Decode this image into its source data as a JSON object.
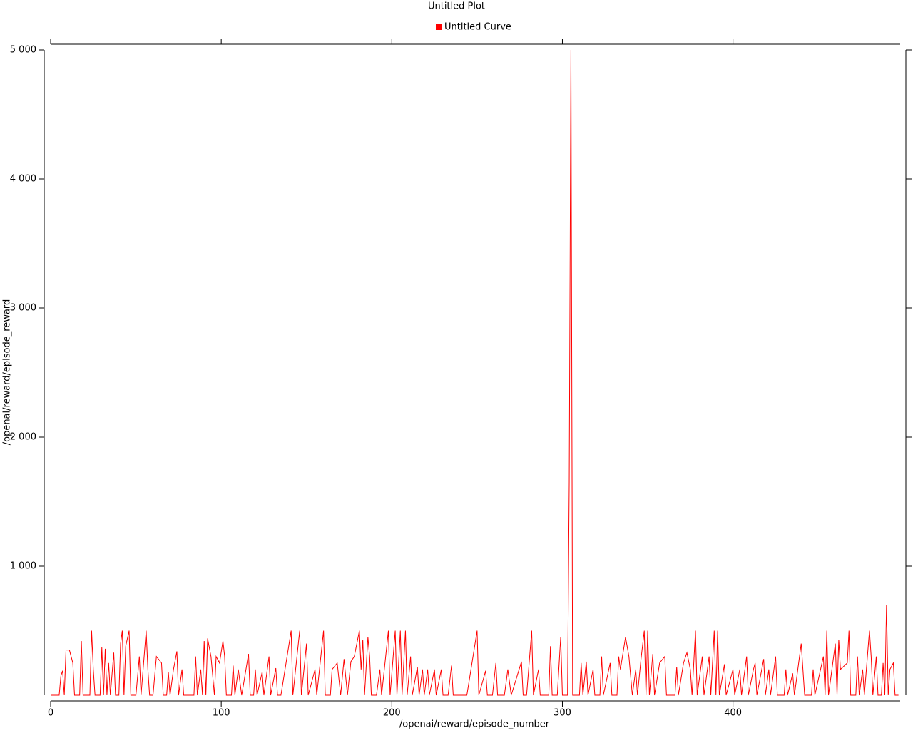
{
  "chart_data": {
    "type": "line",
    "title": "Untitled Plot",
    "x_label": "/openai/reward/episode_number",
    "y_label": "/openai/reward/episode_reward",
    "xlim": [
      0,
      498
    ],
    "ylim": [
      0,
      5000
    ],
    "xticks": [
      0,
      100,
      200,
      300,
      400
    ],
    "yticks": [
      {
        "value": 1000,
        "label": "1 000"
      },
      {
        "value": 2000,
        "label": "2 000"
      },
      {
        "value": 3000,
        "label": "3 000"
      },
      {
        "value": 4000,
        "label": "4 000"
      },
      {
        "value": 5000,
        "label": "5 000"
      }
    ],
    "legend": "top",
    "series": [
      {
        "name": "Untitled Curve",
        "color": "#ff0000",
        "x": [
          0,
          5,
          6,
          7,
          8,
          9,
          11,
          13,
          14,
          17,
          18,
          19,
          23,
          24,
          25,
          26,
          29,
          30,
          31,
          32,
          33,
          34,
          35,
          37,
          38,
          40,
          41,
          42,
          43,
          44,
          46,
          47,
          50,
          52,
          53,
          56,
          57,
          58,
          60,
          62,
          65,
          66,
          68,
          69,
          70,
          72,
          74,
          75,
          77,
          78,
          84,
          85,
          86,
          88,
          89,
          90,
          91,
          92,
          94,
          96,
          97,
          99,
          101,
          102,
          103,
          106,
          107,
          108,
          110,
          112,
          116,
          117,
          119,
          120,
          121,
          124,
          125,
          128,
          129,
          132,
          133,
          135,
          141,
          142,
          146,
          147,
          150,
          151,
          155,
          156,
          160,
          161,
          164,
          165,
          168,
          170,
          172,
          174,
          176,
          178,
          181,
          182,
          183,
          184,
          186,
          187,
          188,
          191,
          193,
          194,
          198,
          199,
          202,
          203,
          205,
          206,
          208,
          209,
          211,
          212,
          215,
          216,
          218,
          219,
          221,
          222,
          225,
          226,
          229,
          230,
          233,
          235,
          236,
          244,
          250,
          251,
          255,
          256,
          259,
          261,
          262,
          266,
          268,
          270,
          276,
          277,
          279,
          282,
          283,
          286,
          287,
          292,
          293,
          294,
          297,
          299,
          300,
          303,
          304,
          305,
          306,
          310,
          311,
          312,
          314,
          315,
          318,
          319,
          322,
          323,
          324,
          328,
          329,
          332,
          333,
          334,
          337,
          339,
          341,
          343,
          344,
          346,
          348,
          349,
          350,
          351,
          353,
          354,
          357,
          360,
          361,
          366,
          367,
          368,
          371,
          373,
          375,
          376,
          378,
          379,
          382,
          383,
          386,
          387,
          389,
          390,
          391,
          392,
          395,
          396,
          400,
          401,
          404,
          405,
          408,
          409,
          412,
          413,
          414,
          418,
          419,
          421,
          422,
          425,
          426,
          430,
          431,
          432,
          435,
          436,
          440,
          441,
          442,
          446,
          447,
          448,
          453,
          454,
          455,
          456,
          460,
          461,
          462,
          463,
          467,
          468,
          469,
          472,
          473,
          474,
          476,
          477,
          480,
          481,
          482,
          484,
          485,
          487,
          488,
          489,
          490,
          491,
          492,
          494,
          495,
          497
        ],
        "values": [
          0,
          0,
          150,
          190,
          0,
          350,
          350,
          250,
          0,
          0,
          420,
          0,
          0,
          500,
          200,
          0,
          0,
          370,
          0,
          360,
          0,
          250,
          0,
          330,
          0,
          0,
          400,
          500,
          0,
          380,
          500,
          0,
          0,
          300,
          0,
          500,
          200,
          0,
          0,
          300,
          250,
          0,
          0,
          180,
          0,
          200,
          340,
          0,
          200,
          0,
          0,
          300,
          0,
          200,
          0,
          420,
          0,
          440,
          300,
          0,
          300,
          250,
          420,
          300,
          0,
          0,
          230,
          0,
          200,
          0,
          320,
          0,
          0,
          200,
          0,
          180,
          0,
          300,
          0,
          210,
          0,
          0,
          500,
          0,
          500,
          0,
          400,
          0,
          200,
          0,
          500,
          0,
          0,
          200,
          250,
          0,
          280,
          0,
          260,
          300,
          500,
          200,
          430,
          0,
          450,
          300,
          0,
          0,
          200,
          0,
          500,
          0,
          500,
          0,
          500,
          0,
          500,
          0,
          300,
          0,
          220,
          0,
          200,
          0,
          200,
          0,
          200,
          0,
          200,
          0,
          0,
          230,
          0,
          0,
          500,
          0,
          190,
          0,
          0,
          250,
          0,
          0,
          200,
          0,
          260,
          0,
          0,
          500,
          0,
          200,
          0,
          0,
          380,
          0,
          0,
          450,
          0,
          0,
          1650,
          5000,
          0,
          0,
          250,
          0,
          260,
          0,
          200,
          0,
          0,
          300,
          0,
          250,
          0,
          0,
          300,
          200,
          450,
          300,
          0,
          200,
          0,
          270,
          500,
          0,
          500,
          0,
          320,
          0,
          250,
          300,
          0,
          0,
          220,
          0,
          250,
          330,
          200,
          0,
          500,
          0,
          300,
          0,
          300,
          0,
          500,
          0,
          500,
          0,
          240,
          0,
          200,
          0,
          200,
          0,
          300,
          0,
          200,
          250,
          0,
          280,
          0,
          200,
          0,
          300,
          0,
          0,
          200,
          0,
          170,
          0,
          400,
          200,
          0,
          0,
          200,
          0,
          300,
          0,
          500,
          0,
          400,
          0,
          430,
          200,
          250,
          500,
          0,
          0,
          300,
          0,
          200,
          0,
          500,
          300,
          0,
          300,
          0,
          0,
          250,
          0,
          700,
          0,
          200,
          250,
          0,
          0
        ]
      }
    ]
  }
}
